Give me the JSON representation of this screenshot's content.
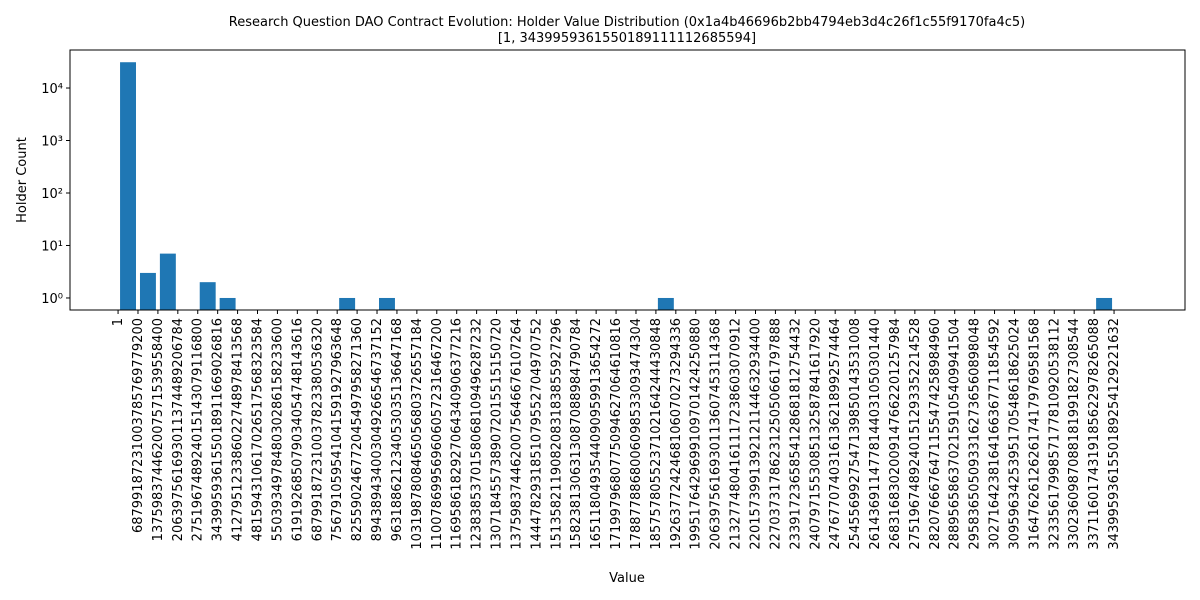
{
  "chart_data": {
    "type": "histogram",
    "title": "Research Question DAO Contract Evolution: Holder Value Distribution (0x1a4b46696b2bb4794eb3d4c26f1c55f9170fa4c5)",
    "subtitle": "[1, 3439959361550189111112685594]",
    "xlabel": "Value",
    "ylabel": "Holder Count",
    "color": "#1f77b4",
    "log_y": true,
    "bins": [
      1,
      68799187231003785769779200,
      137598374462007571539558400,
      206397561693011374489206784,
      275196748924015143079116800,
      343995936155018911669026816,
      412795123386022748978413568,
      481594310617026517568323584,
      550393497848030286158233600,
      619192685079034054748143616,
      687991872310037823380536320,
      756791059541041591927963648,
      825590246772045497958271360,
      894389434003049266546737152,
      963188621234053035136647168,
      1031987808465056803726557184,
      1100786995696060572316467200,
      1169586182927064340906377216,
      1238385370158068109496287232,
      1307184557389072015515150720,
      1375983744620075646676107264,
      1444782931851079552704970752,
      1513582119082083183855927296,
      1582381306313087088984790784,
      1651180493544090959913654272,
      1719979680775094627064610816,
      1788778868006098533093474304,
      1857578055237102164244430848,
      1926377242468106070273294336,
      1995176429699109701424250880,
      2063975616930113607453114368,
      2132774804161117238603070912,
      2201573991392121144632934400,
      2270373178623125050661797888,
      2339172365854128681812754432,
      2407971553085132587841617920,
      2476770740316136218992574464,
      2545569927547139850143531008,
      2614369114778144031050301440,
      2683168302009147662201257984,
      2751967489240151293352214528,
      2820766676471155474258984960,
      2889565863702159105409941504,
      2958365050933162736560898048,
      3027164238164166367711854592,
      3095963425395170548618625024,
      3164762612626174179769581568,
      3233561799857177810920538112,
      3302360987088181991827308544,
      3371160174319185622978265088,
      3439959361550189254129221632
    ],
    "values": [
      31000,
      3,
      7,
      0,
      2,
      1,
      0,
      0,
      0,
      0,
      0,
      1,
      0,
      1,
      0,
      0,
      0,
      0,
      0,
      0,
      0,
      0,
      0,
      0,
      0,
      0,
      0,
      1,
      0,
      0,
      0,
      0,
      0,
      0,
      0,
      0,
      0,
      0,
      0,
      0,
      0,
      0,
      0,
      0,
      0,
      0,
      0,
      0,
      0,
      1
    ],
    "xlim": [
      -166000000000000000000000000,
      3685000000000000000000000000
    ],
    "xticks": [
      {
        "value": 1,
        "label": "1"
      },
      {
        "value": 68799187231003785769779200,
        "label": "68799187231003785769779200"
      },
      {
        "value": 137598374462007571539558400,
        "label": "137598374462007571539558400"
      },
      {
        "value": 206397561693011374489206784,
        "label": "206397561693011374489206784"
      },
      {
        "value": 275196748924015143079116800,
        "label": "275196748924015143079116800"
      },
      {
        "value": 343995936155018911669026816,
        "label": "343995936155018911669026816"
      },
      {
        "value": 412795123386022748978413568,
        "label": "412795123386022748978413568"
      },
      {
        "value": 481594310617026517568323584,
        "label": "481594310617026517568323584"
      },
      {
        "value": 550393497848030286158233600,
        "label": "550393497848030286158233600"
      },
      {
        "value": 619192685079034054748143616,
        "label": "619192685079034054748143616"
      },
      {
        "value": 687991872310037823380536320,
        "label": "687991872310037823380536320"
      },
      {
        "value": 756791059541041591927963648,
        "label": "756791059541041591927963648"
      },
      {
        "value": 825590246772045497958271360,
        "label": "825590246772045497958271360"
      },
      {
        "value": 894389434003049266546737152,
        "label": "894389434003049266546737152"
      },
      {
        "value": 963188621234053035136647168,
        "label": "963188621234053035136647168"
      },
      {
        "value": 1031987808465056803726557184,
        "label": "1031987808465056803726557184"
      },
      {
        "value": 1100786995696060572316467200,
        "label": "1100786995696060572316467200"
      },
      {
        "value": 1169586182927064340906377216,
        "label": "1169586182927064340906377216"
      },
      {
        "value": 1238385370158068109496287232,
        "label": "1238385370158068109496287232"
      },
      {
        "value": 1307184557389072015515150720,
        "label": "1307184557389072015515150720"
      },
      {
        "value": 1375983744620075646676107264,
        "label": "1375983744620075646676107264"
      },
      {
        "value": 1444782931851079552704970752,
        "label": "1444782931851079552704970752"
      },
      {
        "value": 1513582119082083183855927296,
        "label": "1513582119082083183855927296"
      },
      {
        "value": 1582381306313087088984790784,
        "label": "1582381306313087088984790784"
      },
      {
        "value": 1651180493544090959913654272,
        "label": "1651180493544090959913654272"
      },
      {
        "value": 1719979680775094627064610816,
        "label": "1719979680775094627064610816"
      },
      {
        "value": 1788778868006098533093474304,
        "label": "1788778868006098533093474304"
      },
      {
        "value": 1857578055237102164244430848,
        "label": "1857578055237102164244430848"
      },
      {
        "value": 1926377242468106070273294336,
        "label": "1926377242468106070273294336"
      },
      {
        "value": 1995176429699109701424250880,
        "label": "1995176429699109701424250880"
      },
      {
        "value": 2063975616930113607453114368,
        "label": "2063975616930113607453114368"
      },
      {
        "value": 2132774804161117238603070912,
        "label": "2132774804161117238603070912"
      },
      {
        "value": 2201573991392121144632934400,
        "label": "2201573991392121144632934400"
      },
      {
        "value": 2270373178623125050661797888,
        "label": "2270373178623125050661797888"
      },
      {
        "value": 2339172365854128681812754432,
        "label": "2339172365854128681812754432"
      },
      {
        "value": 2407971553085132587841617920,
        "label": "2407971553085132587841617920"
      },
      {
        "value": 2476770740316136218992574464,
        "label": "2476770740316136218992574464"
      },
      {
        "value": 2545569927547139850143531008,
        "label": "2545569927547139850143531008"
      },
      {
        "value": 2614369114778144031050301440,
        "label": "2614369114778144031050301440"
      },
      {
        "value": 2683168302009147662201257984,
        "label": "2683168302009147662201257984"
      },
      {
        "value": 2751967489240151293352214528,
        "label": "2751967489240151293352214528"
      },
      {
        "value": 2820766676471155474258984960,
        "label": "2820766676471155474258984960"
      },
      {
        "value": 2889565863702159105409941504,
        "label": "2889565863702159105409941504"
      },
      {
        "value": 2958365050933162736560898048,
        "label": "2958365050933162736560898048"
      },
      {
        "value": 3027164238164166367711854592,
        "label": "3027164238164166367711854592"
      },
      {
        "value": 3095963425395170548618625024,
        "label": "3095963425395170548618625024"
      },
      {
        "value": 3164762612626174179769581568,
        "label": "3164762612626174179769581568"
      },
      {
        "value": 3233561799857177810920538112,
        "label": "3233561799857177810920538112"
      },
      {
        "value": 3302360987088181991827308544,
        "label": "3302360987088181991827308544"
      },
      {
        "value": 3371160174319185622978265088,
        "label": "3371160174319185622978265088"
      },
      {
        "value": 3439959361550189254129221632,
        "label": "3439959361550189254129221632"
      }
    ],
    "ylim": [
      0.59,
      53000
    ],
    "yticks": [
      {
        "value": 1,
        "label": "10⁰"
      },
      {
        "value": 10,
        "label": "10¹"
      },
      {
        "value": 100,
        "label": "10²"
      },
      {
        "value": 1000,
        "label": "10³"
      },
      {
        "value": 10000,
        "label": "10⁴"
      }
    ]
  }
}
